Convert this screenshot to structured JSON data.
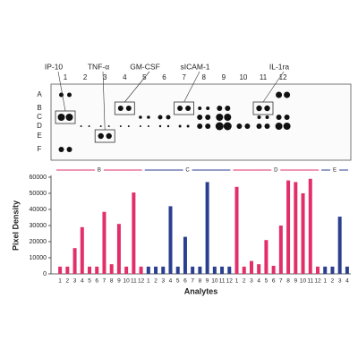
{
  "blot": {
    "column_labels": [
      "1",
      "2",
      "3",
      "4",
      "5",
      "6",
      "7",
      "8",
      "9",
      "10",
      "11",
      "12"
    ],
    "row_labels": [
      "A",
      "B",
      "C",
      "D",
      "E",
      "F"
    ],
    "annotations": [
      "IP-10",
      "TNF-α",
      "GM-CSF",
      "sICAM-1",
      "IL-1ra"
    ]
  },
  "chart_data": {
    "type": "bar",
    "y_label": "Pixel Density",
    "x_label": "Analytes",
    "ylim": [
      0,
      60000
    ],
    "yticks": [
      0,
      10000,
      20000,
      30000,
      40000,
      50000,
      60000
    ],
    "series": [
      {
        "name": "B",
        "color": "#e22f6a",
        "categories": [
          "1",
          "2",
          "3",
          "4",
          "5",
          "6",
          "7",
          "8",
          "9",
          "10",
          "11",
          "12"
        ],
        "values": [
          4500,
          4500,
          16000,
          29000,
          4500,
          4500,
          38500,
          6000,
          31000,
          4500,
          50500,
          4500
        ]
      },
      {
        "name": "C",
        "color": "#2b3f91",
        "categories": [
          "1",
          "2",
          "3",
          "4",
          "5",
          "6",
          "7",
          "8",
          "9",
          "10",
          "11",
          "12"
        ],
        "values": [
          4500,
          4500,
          4500,
          42000,
          4500,
          23000,
          4500,
          4500,
          57000,
          4500,
          4500,
          4500
        ]
      },
      {
        "name": "D",
        "color": "#e22f6a",
        "categories": [
          "1",
          "2",
          "3",
          "4",
          "5",
          "6",
          "7",
          "8",
          "9",
          "10",
          "11",
          "12"
        ],
        "values": [
          54000,
          4500,
          8000,
          6000,
          21000,
          5000,
          30000,
          58000,
          57000,
          50000,
          59000,
          4500
        ]
      },
      {
        "name": "E",
        "color": "#2b3f91",
        "categories": [
          "1",
          "2",
          "3",
          "4"
        ],
        "values": [
          4500,
          4500,
          35500,
          4500
        ]
      }
    ]
  }
}
